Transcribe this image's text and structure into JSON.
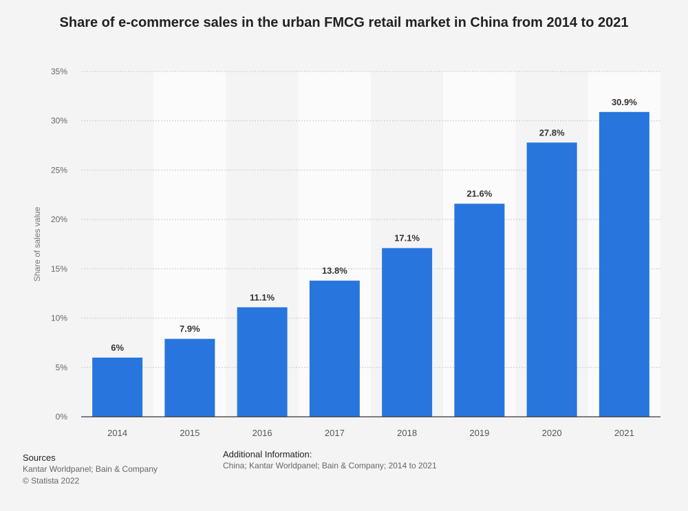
{
  "chart_data": {
    "type": "bar",
    "title": "Share of e-commerce sales in the urban FMCG retail market in China from 2014 to 2021",
    "categories": [
      "2014",
      "2015",
      "2016",
      "2017",
      "2018",
      "2019",
      "2020",
      "2021"
    ],
    "values": [
      6,
      7.9,
      11.1,
      13.8,
      17.1,
      21.6,
      27.8,
      30.9
    ],
    "data_labels": [
      "6%",
      "7.9%",
      "11.1%",
      "13.8%",
      "17.1%",
      "21.6%",
      "27.8%",
      "30.9%"
    ],
    "xlabel": "",
    "ylabel": "Share of sales value",
    "ylim": [
      0,
      35
    ],
    "yticks": [
      0,
      5,
      10,
      15,
      20,
      25,
      30,
      35
    ],
    "ytick_labels": [
      "0%",
      "5%",
      "10%",
      "15%",
      "20%",
      "25%",
      "30%",
      "35%"
    ],
    "grid": true,
    "bar_color": "#2876dd"
  },
  "footer": {
    "sources_heading": "Sources",
    "sources_line1": "Kantar Worldpanel; Bain & Company",
    "sources_line2": "© Statista 2022",
    "additional_heading": "Additional Information:",
    "additional_text": "China; Kantar Worldpanel; Bain & Company; 2014 to 2021"
  }
}
